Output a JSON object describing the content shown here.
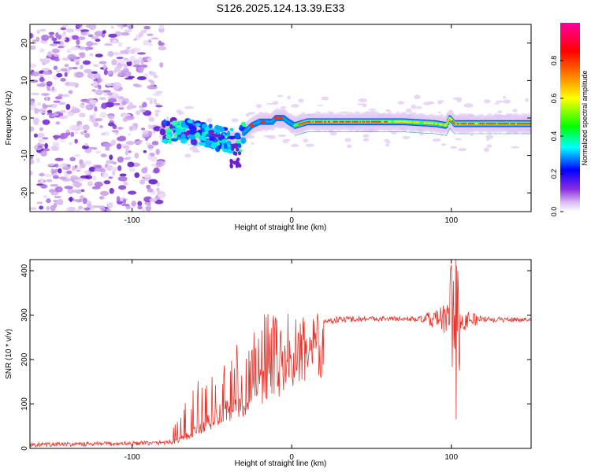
{
  "title": "S126.2025.124.13.39.E33",
  "chart_data": [
    {
      "type": "heatmap",
      "name": "spectrogram",
      "xlabel": "Height of straight line (km)",
      "ylabel": "Frequency (Hz)",
      "xlim": [
        -164,
        150
      ],
      "ylim": [
        -25,
        25
      ],
      "xticks": [
        -100,
        0,
        100
      ],
      "yticks": [
        -20,
        -10,
        0,
        10,
        20
      ],
      "xtick_labels": [
        "-100",
        "0",
        "100"
      ],
      "ytick_labels": [
        "-20",
        "-10",
        "0",
        "10",
        "20"
      ],
      "colorbar": {
        "label": "Normalized spectral amplitude",
        "range": [
          0,
          1
        ],
        "ticks": [
          0.0,
          0.2,
          0.4,
          0.6,
          0.8
        ],
        "tick_labels": [
          "0.0",
          "0.2",
          "0.4",
          "0.6",
          "0.8"
        ],
        "colors": [
          "#ffffff",
          "#d9b8f2",
          "#8a2be2",
          "#0000ff",
          "#00ffff",
          "#00ff00",
          "#ffff00",
          "#ff8000",
          "#ff0000",
          "#ff00a0"
        ]
      },
      "noise_region_x": [
        -164,
        -81
      ],
      "signal_ridge": {
        "x": [
          -81,
          -70,
          -60,
          -50,
          -40,
          -33,
          -30,
          -25,
          -20,
          -15,
          -12,
          -10,
          -7,
          -5,
          -2,
          2,
          10,
          30,
          50,
          70,
          90,
          97,
          99,
          102,
          110,
          130,
          150
        ],
        "freq": [
          -4,
          -3,
          -4,
          -5,
          -6,
          -6,
          -4,
          -2,
          -1,
          -1,
          -1,
          0,
          0,
          0,
          -1,
          -2,
          -1,
          -1,
          -1,
          -1,
          -1.5,
          -2,
          0,
          -1.5,
          -1.5,
          -1.5,
          -1.5
        ]
      }
    },
    {
      "type": "line",
      "name": "snr",
      "xlabel": "Height of straight line (km)",
      "ylabel": "SNR (10 * v/v)",
      "xlim": [
        -164,
        150
      ],
      "ylim": [
        0,
        425
      ],
      "xticks": [
        -100,
        0,
        100
      ],
      "yticks": [
        0,
        100,
        200,
        300,
        400
      ],
      "xtick_labels": [
        "-100",
        "0",
        "100"
      ],
      "ytick_labels": [
        "0",
        "100",
        "200",
        "300",
        "400"
      ],
      "color": "#e8332a",
      "envelope": {
        "x": [
          -164,
          -120,
          -85,
          -75,
          -70,
          -65,
          -60,
          -50,
          -40,
          -35,
          -30,
          -25,
          -20,
          -15,
          -10,
          -5,
          0,
          10,
          20,
          30,
          40,
          60,
          80,
          100,
          120,
          150
        ],
        "base": [
          8,
          10,
          12,
          15,
          25,
          35,
          50,
          80,
          110,
          120,
          110,
          150,
          170,
          190,
          200,
          220,
          240,
          270,
          285,
          290,
          292,
          292,
          291,
          290,
          290,
          290
        ],
        "peak": [
          18,
          18,
          20,
          40,
          80,
          130,
          150,
          180,
          200,
          240,
          180,
          260,
          300,
          315,
          300,
          320,
          300,
          305,
          310,
          315,
          315,
          310,
          310,
          425,
          310,
          310
        ]
      },
      "features": [
        {
          "x": 103,
          "value": 425
        },
        {
          "x": 103,
          "value": 65
        }
      ]
    }
  ]
}
